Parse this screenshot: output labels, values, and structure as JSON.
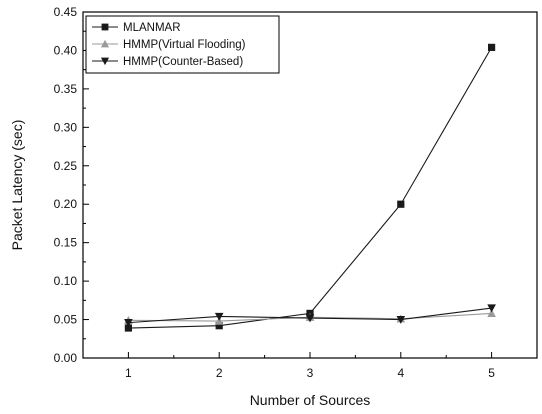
{
  "chart_data": {
    "type": "line",
    "title": "",
    "xlabel": "Number of Sources",
    "ylabel": "Packet Latency (sec)",
    "x": [
      1,
      2,
      3,
      4,
      5
    ],
    "xticks": [
      "1",
      "2",
      "3",
      "4",
      "5"
    ],
    "xlim": [
      0.5,
      5.5
    ],
    "ylim": [
      0.0,
      0.45
    ],
    "yticks": [
      "0.00",
      "0.05",
      "0.10",
      "0.15",
      "0.20",
      "0.25",
      "0.30",
      "0.35",
      "0.40",
      "0.45"
    ],
    "grid": false,
    "legend_position": "top-left",
    "series": [
      {
        "name": "MLANMAR",
        "marker": "square",
        "color": "#1a1a1a",
        "values": [
          0.039,
          0.042,
          0.058,
          0.2,
          0.404
        ]
      },
      {
        "name": "HMMP(Virtual Flooding)",
        "marker": "triangle-up",
        "color": "#9a9a9a",
        "values": [
          0.049,
          0.048,
          0.053,
          0.051,
          0.058
        ]
      },
      {
        "name": "HMMP(Counter-Based)",
        "marker": "triangle-down",
        "color": "#1a1a1a",
        "values": [
          0.046,
          0.054,
          0.052,
          0.05,
          0.065
        ]
      }
    ]
  }
}
